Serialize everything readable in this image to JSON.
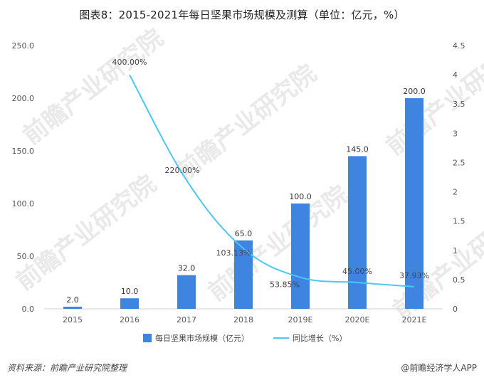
{
  "title": "图表8：2015-2021年每日坚果市场规模及测算（单位：亿元，%）",
  "chart_data": {
    "type": "bar",
    "categories": [
      "2015",
      "2016",
      "2017",
      "2018",
      "2019E",
      "2020E",
      "2021E"
    ],
    "series": [
      {
        "name": "每日坚果市场规模（亿元）",
        "type": "bar",
        "axis": "left",
        "color": "#3f84e0",
        "values": [
          2.0,
          10.0,
          32.0,
          65.0,
          100.0,
          145.0,
          200.0
        ],
        "labels": [
          "2.0",
          "10.0",
          "32.0",
          "65.0",
          "100.0",
          "145.0",
          "200.0"
        ]
      },
      {
        "name": "同比增长（%）",
        "type": "line",
        "axis": "right",
        "color": "#4cc8f5",
        "values": [
          null,
          4.0,
          2.2,
          1.0313,
          0.5385,
          0.45,
          0.3793
        ],
        "labels": [
          "",
          "400.00%",
          "220.00%",
          "103.13%",
          "53.85%",
          "45.00%",
          "37.93%"
        ]
      }
    ],
    "yleft": {
      "min": 0,
      "max": 250,
      "ticks": [
        "0.0",
        "50.0",
        "100.0",
        "150.0",
        "200.0",
        "250.0"
      ]
    },
    "yright": {
      "min": 0,
      "max": 4.5,
      "ticks": [
        "0",
        "0.5",
        "1",
        "1.5",
        "2",
        "2.5",
        "3",
        "3.5",
        "4",
        "4.5"
      ]
    },
    "legend_position": "bottom",
    "grid": false
  },
  "footer": {
    "source": "资料来源：前瞻产业研究院整理",
    "brand": "@前瞻经济学人APP"
  },
  "watermark": "前瞻产业研究院"
}
